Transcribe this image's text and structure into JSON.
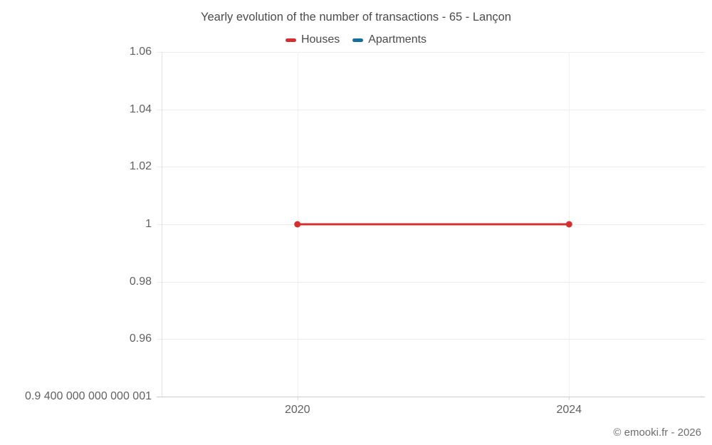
{
  "header": {
    "title": "Yearly evolution of the number of transactions - 65 - Lançon"
  },
  "legend": {
    "items": [
      {
        "label": "Houses",
        "color": "#d32f2f"
      },
      {
        "label": "Apartments",
        "color": "#156f9e"
      }
    ]
  },
  "footer": {
    "copyright": "© emooki.fr - 2026"
  },
  "colors": {
    "houses_series": "#d32f2f",
    "apartments_series": "#156f9e",
    "axis_text": "#616161",
    "title_text": "#4b4b4b"
  },
  "chart_data": {
    "type": "line",
    "title": "Yearly evolution of the number of transactions - 65 - Lançon",
    "xlabel": "",
    "ylabel": "",
    "x_domain": [
      2018,
      2026
    ],
    "y_domain": [
      0.94,
      1.06
    ],
    "grid": true,
    "legend_position": "top",
    "xticks": [
      {
        "value": 2020,
        "label": "2020"
      },
      {
        "value": 2024,
        "label": "2024"
      }
    ],
    "yticks": [
      {
        "value": 1.06,
        "label": "1.06"
      },
      {
        "value": 1.04,
        "label": "1.04"
      },
      {
        "value": 1.02,
        "label": "1.02"
      },
      {
        "value": 1,
        "label": "1"
      },
      {
        "value": 0.98,
        "label": "0.98"
      },
      {
        "value": 0.96,
        "label": "0.96"
      },
      {
        "value": 0.94,
        "label": "0.9 400 000 000 000 001"
      }
    ],
    "series": [
      {
        "name": "Houses",
        "color": "#d32f2f",
        "points": [
          {
            "x": 2020,
            "y": 1
          },
          {
            "x": 2024,
            "y": 1
          }
        ]
      },
      {
        "name": "Apartments",
        "color": "#156f9e",
        "points": []
      }
    ]
  }
}
